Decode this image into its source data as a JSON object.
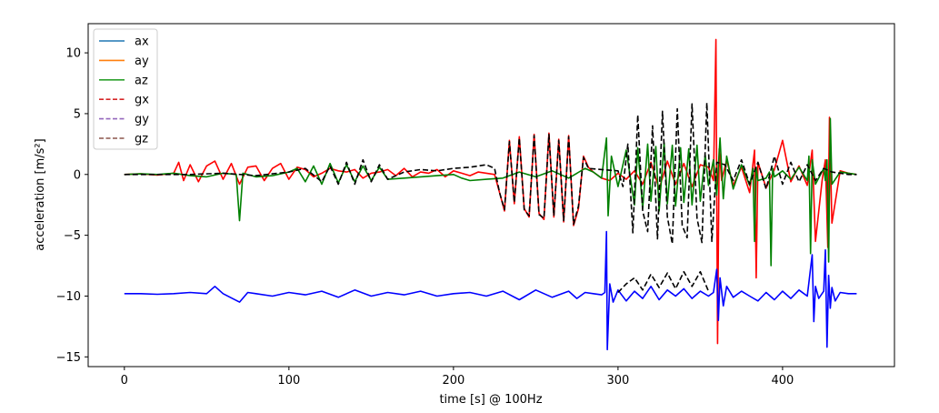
{
  "chart_data": {
    "type": "line",
    "title": "",
    "xlabel": "time [s] @ 100Hz",
    "ylabel": "acceleration [m/s²]",
    "xlim": [
      -22,
      468
    ],
    "ylim": [
      -15.8,
      12.4
    ],
    "xticks": [
      0,
      100,
      200,
      300,
      400
    ],
    "yticks": [
      -15,
      -10,
      -5,
      0,
      5,
      10
    ],
    "grid": false,
    "legend_position": "top-left",
    "legend": [
      {
        "name": "ax",
        "color": "#1f77b4",
        "style": "solid"
      },
      {
        "name": "ay",
        "color": "#ff7f0e",
        "style": "solid"
      },
      {
        "name": "az",
        "color": "#2ca02c",
        "style": "solid"
      },
      {
        "name": "gx",
        "color": "#d62728",
        "style": "dashed"
      },
      {
        "name": "gy",
        "color": "#9467bd",
        "style": "dashed"
      },
      {
        "name": "gz",
        "color": "#8c564b",
        "style": "dashed"
      }
    ],
    "series": [
      {
        "name": "red",
        "color": "#ff0000",
        "style": "solid",
        "x": [
          0,
          10,
          20,
          30,
          33,
          36,
          40,
          45,
          50,
          55,
          60,
          65,
          70,
          75,
          80,
          85,
          90,
          95,
          100,
          105,
          110,
          115,
          120,
          125,
          130,
          135,
          140,
          145,
          150,
          155,
          160,
          165,
          170,
          175,
          180,
          185,
          190,
          195,
          200,
          205,
          210,
          215,
          220,
          225,
          228,
          231,
          234,
          237,
          240,
          243,
          246,
          249,
          252,
          255,
          258,
          261,
          264,
          267,
          270,
          273,
          276,
          279,
          282,
          285,
          290,
          295,
          300,
          305,
          310,
          315,
          320,
          325,
          330,
          335,
          340,
          345,
          350,
          355,
          358,
          359.5,
          360.5,
          361.5,
          363,
          366,
          370,
          375,
          380,
          383,
          384,
          385,
          390,
          395,
          400,
          405,
          410,
          415,
          418,
          420,
          424,
          426,
          427.5,
          428.5,
          430,
          435,
          440,
          445
        ],
        "y": [
          0,
          0.05,
          -0.05,
          0.1,
          1,
          -0.5,
          0.8,
          -0.6,
          0.7,
          1.1,
          -0.4,
          0.9,
          -0.8,
          0.6,
          0.7,
          -0.5,
          0.5,
          0.9,
          -0.4,
          0.6,
          0.4,
          -0.2,
          0.1,
          0.5,
          0.3,
          0.2,
          0.4,
          -0.3,
          0.1,
          0.2,
          0.4,
          -0.1,
          0.5,
          -0.2,
          0.2,
          0.1,
          0.4,
          -0.2,
          0.3,
          0.1,
          -0.1,
          0.2,
          0.1,
          0.0,
          -1.5,
          -3.0,
          2.8,
          -2.4,
          3.1,
          -2.8,
          -3.5,
          3.3,
          -3.2,
          -3.7,
          3.4,
          -3.5,
          2.9,
          -3.9,
          3.2,
          -4.2,
          -2.8,
          1.5,
          0.6,
          0.2,
          -0.3,
          -0.5,
          0.1,
          -0.4,
          0.3,
          -0.8,
          1.0,
          -1.2,
          1.1,
          -0.8,
          0.9,
          -1.0,
          0.8,
          0.6,
          -0.5,
          11.1,
          -13.9,
          2.1,
          -0.5,
          1.2,
          -0.9,
          0.6,
          -1.5,
          2.0,
          -8.5,
          1.0,
          -1.1,
          0.4,
          2.8,
          -0.6,
          0.7,
          -0.9,
          2.0,
          -5.5,
          -0.5,
          1.2,
          -6.0,
          4.7,
          -4.0,
          0.3,
          0.1,
          0.0
        ]
      },
      {
        "name": "green",
        "color": "#008000",
        "style": "solid",
        "x": [
          0,
          10,
          20,
          30,
          40,
          50,
          60,
          68,
          70,
          72,
          80,
          90,
          100,
          105,
          110,
          115,
          120,
          125,
          130,
          135,
          140,
          145,
          150,
          155,
          160,
          170,
          180,
          190,
          200,
          205,
          210,
          220,
          230,
          240,
          250,
          260,
          270,
          280,
          285,
          290,
          293,
          294,
          296,
          300,
          305,
          310,
          312,
          315,
          318,
          320,
          323,
          325,
          328,
          330,
          333,
          335,
          338,
          340,
          343,
          345,
          348,
          350,
          353,
          355,
          358,
          360,
          362,
          364,
          366,
          370,
          375,
          380,
          382,
          383,
          384,
          385,
          390,
          392,
          393,
          394,
          395,
          400,
          405,
          410,
          415,
          416,
          417,
          418,
          420,
          425,
          426,
          427,
          428,
          429,
          430,
          435,
          440,
          445
        ],
        "y": [
          0,
          0.05,
          0,
          0.1,
          -0.1,
          -0.2,
          0.1,
          0,
          -3.8,
          0.1,
          -0.2,
          -0.1,
          0.2,
          0.5,
          -0.6,
          0.7,
          -0.8,
          0.9,
          -0.7,
          0.8,
          -0.6,
          0.7,
          -0.5,
          0.6,
          -0.4,
          -0.3,
          -0.2,
          -0.1,
          0,
          -0.3,
          -0.5,
          -0.4,
          -0.3,
          0.2,
          -0.2,
          0.3,
          -0.3,
          0.5,
          0.2,
          -0.3,
          3.0,
          -3.4,
          1.5,
          -1.0,
          2.0,
          -2.5,
          2.2,
          -2.8,
          2.5,
          -2.2,
          2.3,
          -3.0,
          2.6,
          -2.4,
          2.4,
          -2.6,
          2.2,
          -2.3,
          2.1,
          -2.5,
          2.4,
          -2.2,
          1.6,
          -0.9,
          1.2,
          -1.7,
          3.0,
          -2.0,
          1.5,
          -1.2,
          0.8,
          -0.9,
          0.5,
          -5.5,
          0.6,
          -0.5,
          -0.3,
          0.2,
          -7.5,
          0.5,
          -0.2,
          0.3,
          -0.4,
          0.6,
          -0.5,
          1.5,
          -6.5,
          1.2,
          -0.8,
          0.5,
          -0.5,
          1.2,
          -7.2,
          4.6,
          -0.8,
          0.2,
          0.1,
          0.0
        ]
      },
      {
        "name": "blue",
        "color": "#0000ff",
        "style": "solid",
        "x": [
          0,
          10,
          20,
          30,
          40,
          50,
          55,
          60,
          70,
          75,
          80,
          90,
          100,
          110,
          120,
          130,
          140,
          150,
          160,
          170,
          180,
          190,
          200,
          210,
          220,
          230,
          240,
          250,
          260,
          270,
          275,
          280,
          285,
          290,
          292,
          293,
          293.5,
          295,
          297,
          300,
          305,
          310,
          315,
          320,
          325,
          330,
          335,
          340,
          345,
          350,
          355,
          358,
          360,
          361,
          362,
          364,
          366,
          370,
          375,
          380,
          385,
          390,
          395,
          400,
          405,
          410,
          415,
          418,
          419,
          420,
          422,
          425,
          426,
          427,
          428,
          429,
          430,
          432,
          435,
          440,
          445
        ],
        "y": [
          -9.8,
          -9.8,
          -9.85,
          -9.8,
          -9.7,
          -9.8,
          -9.2,
          -9.8,
          -10.5,
          -9.7,
          -9.8,
          -10.0,
          -9.7,
          -9.9,
          -9.6,
          -10.1,
          -9.5,
          -10.0,
          -9.7,
          -9.9,
          -9.6,
          -10.0,
          -9.8,
          -9.7,
          -10.0,
          -9.6,
          -10.3,
          -9.5,
          -10.1,
          -9.6,
          -10.2,
          -9.7,
          -9.8,
          -9.9,
          -9.7,
          -4.7,
          -14.4,
          -9.0,
          -10.5,
          -9.5,
          -10.4,
          -9.6,
          -10.2,
          -9.2,
          -10.3,
          -9.5,
          -10.0,
          -9.4,
          -10.2,
          -9.6,
          -10.0,
          -9.7,
          -7.8,
          -12.0,
          -8.5,
          -10.8,
          -9.2,
          -10.1,
          -9.6,
          -10.0,
          -10.4,
          -9.7,
          -10.3,
          -9.6,
          -10.2,
          -9.5,
          -10.0,
          -6.6,
          -12.1,
          -9.2,
          -10.2,
          -9.6,
          -6.2,
          -14.2,
          -8.3,
          -11.0,
          -9.3,
          -10.4,
          -9.7,
          -9.8,
          -9.8
        ]
      },
      {
        "name": "black-dashed-upper",
        "color": "#000000",
        "style": "dashed",
        "x": [
          0,
          20,
          40,
          60,
          80,
          100,
          110,
          120,
          125,
          130,
          135,
          140,
          145,
          150,
          155,
          160,
          170,
          180,
          190,
          200,
          210,
          220,
          225,
          228,
          231,
          234,
          237,
          240,
          243,
          246,
          249,
          252,
          255,
          258,
          261,
          264,
          267,
          270,
          273,
          276,
          279,
          282,
          290,
          300,
          303,
          306,
          309,
          312,
          315,
          318,
          321,
          324,
          327,
          330,
          333,
          336,
          339,
          342,
          345,
          348,
          351,
          354,
          357,
          360,
          365,
          370,
          375,
          380,
          385,
          390,
          395,
          400,
          405,
          410,
          415,
          420,
          425,
          430,
          435,
          440,
          445
        ],
        "y": [
          0,
          0,
          0,
          0.1,
          -0.1,
          0.2,
          0.5,
          -0.6,
          0.7,
          -0.8,
          1.0,
          -0.8,
          1.2,
          -0.6,
          0.8,
          -0.4,
          0.2,
          0.4,
          0.3,
          0.5,
          0.6,
          0.8,
          0.5,
          -1.5,
          -2.9,
          2.7,
          -2.3,
          3.0,
          -2.9,
          -3.4,
          3.2,
          -3.3,
          -3.6,
          3.3,
          -3.4,
          2.8,
          -3.8,
          3.1,
          -4.1,
          -2.6,
          1.4,
          0.5,
          0.4,
          0.3,
          -1.0,
          2.5,
          -4.8,
          4.9,
          -3.0,
          -4.7,
          4.0,
          -5.3,
          5.2,
          -3.5,
          -5.7,
          5.4,
          -4.2,
          -5.2,
          5.8,
          -3.6,
          -5.6,
          5.9,
          -5.5,
          1.0,
          0.8,
          -0.5,
          1.2,
          -0.8,
          1.0,
          -1.2,
          1.5,
          -0.8,
          1.0,
          -0.6,
          0.8,
          -0.5,
          0.5,
          0.2,
          0.1,
          0.0,
          0.0
        ]
      },
      {
        "name": "black-dashed-lower",
        "color": "#000000",
        "style": "dashed",
        "x": [
          300,
          305,
          310,
          315,
          320,
          325,
          330,
          335,
          340,
          345,
          350,
          355
        ],
        "y": [
          -9.7,
          -9.0,
          -8.5,
          -9.5,
          -8.2,
          -9.3,
          -8.1,
          -9.4,
          -8.0,
          -9.2,
          -8.0,
          -9.6
        ]
      }
    ]
  }
}
